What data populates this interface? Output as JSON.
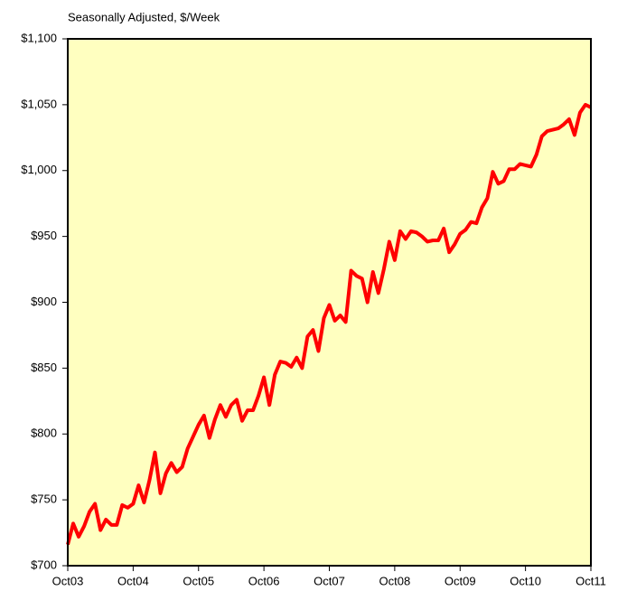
{
  "chart_data": {
    "type": "line",
    "subtitle": "Seasonally Adjusted, $/Week",
    "categories": [
      "Oct03",
      null,
      null,
      null,
      null,
      null,
      null,
      null,
      null,
      null,
      null,
      null,
      "Oct04",
      null,
      null,
      null,
      null,
      null,
      null,
      null,
      null,
      null,
      null,
      null,
      "Oct05",
      null,
      null,
      null,
      null,
      null,
      null,
      null,
      null,
      null,
      null,
      null,
      "Oct06",
      null,
      null,
      null,
      null,
      null,
      null,
      null,
      null,
      null,
      null,
      null,
      "Oct07",
      null,
      null,
      null,
      null,
      null,
      null,
      null,
      null,
      null,
      null,
      null,
      "Oct08",
      null,
      null,
      null,
      null,
      null,
      null,
      null,
      null,
      null,
      null,
      null,
      "Oct09",
      null,
      null,
      null,
      null,
      null,
      null,
      null,
      null,
      null,
      null,
      null,
      "Oct10",
      null,
      null,
      null,
      null,
      null,
      null,
      null,
      null,
      null,
      null,
      null,
      "Oct11"
    ],
    "values": [
      716,
      732,
      722,
      730,
      741,
      747,
      727,
      735,
      731,
      731,
      746,
      744,
      747,
      761,
      748,
      765,
      786,
      755,
      770,
      778,
      771,
      775,
      789,
      798,
      807,
      814,
      797,
      811,
      822,
      813,
      822,
      826,
      810,
      818,
      818,
      829,
      843,
      822,
      845,
      855,
      854,
      851,
      858,
      850,
      874,
      879,
      863,
      888,
      898,
      886,
      890,
      885,
      924,
      920,
      918,
      900,
      923,
      907,
      925,
      946,
      932,
      954,
      948,
      954,
      953,
      950,
      946,
      947,
      947,
      956,
      938,
      944,
      952,
      955,
      961,
      960,
      972,
      979,
      999,
      990,
      992,
      1001,
      1001,
      1005,
      1004,
      1003,
      1012,
      1026,
      1030,
      1031,
      1032,
      1035,
      1039,
      1027,
      1044,
      1050,
      1048
    ],
    "color": "#ff0000",
    "background": "#ffffc0",
    "ylim": [
      700,
      1100
    ],
    "yticks": [
      {
        "value": 700,
        "label": "$700"
      },
      {
        "value": 750,
        "label": "$750"
      },
      {
        "value": 800,
        "label": "$800"
      },
      {
        "value": 850,
        "label": "$850"
      },
      {
        "value": 900,
        "label": "$900"
      },
      {
        "value": 950,
        "label": "$950"
      },
      {
        "value": 1000,
        "label": "$1,000"
      },
      {
        "value": 1050,
        "label": "$1,050"
      },
      {
        "value": 1100,
        "label": "$1,100"
      }
    ],
    "grid": false
  }
}
